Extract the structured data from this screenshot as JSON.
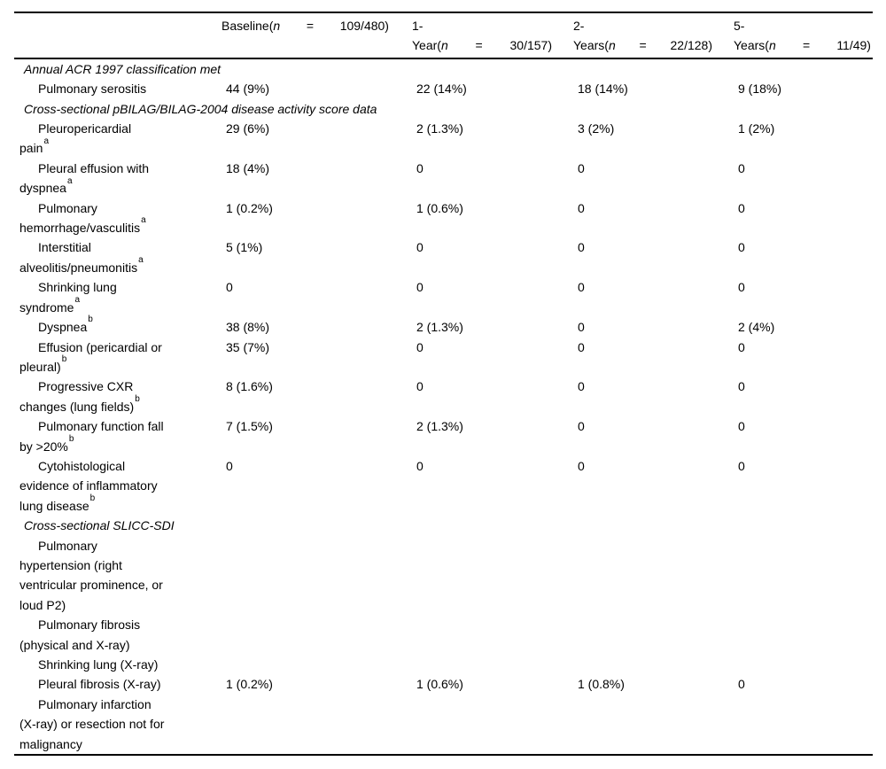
{
  "colors": {
    "background": "#ffffff",
    "text": "#000000",
    "rule": "#000000"
  },
  "table": {
    "header": {
      "row_label_column": "",
      "columns": [
        {
          "top_line": "",
          "name_pre": "Baseline(",
          "n_symbol": "n",
          "equals": "=",
          "count": "109/480)",
          "wrapped": false
        },
        {
          "top_line": "1-",
          "name_pre": "Year(",
          "n_symbol": "n",
          "equals": "=",
          "count": "30/157)",
          "wrapped": true
        },
        {
          "top_line": "2-",
          "name_pre": "Years(",
          "n_symbol": "n",
          "equals": "=",
          "count": "22/128)",
          "wrapped": true
        },
        {
          "top_line": "5-",
          "name_pre": "Years(",
          "n_symbol": "n",
          "equals": "=",
          "count": "11/49)",
          "wrapped": true
        }
      ]
    },
    "rows": [
      {
        "type": "section",
        "lines": [
          "Annual ACR 1997 classification met"
        ],
        "sup": "",
        "values": [
          "",
          "",
          "",
          ""
        ]
      },
      {
        "type": "item",
        "lines": [
          "Pulmonary serositis"
        ],
        "sup": "",
        "values": [
          "44 (9%)",
          "22 (14%)",
          "18 (14%)",
          "9 (18%)"
        ]
      },
      {
        "type": "section",
        "lines": [
          "Cross-sectional pBILAG/BILAG-2004 disease activity score data"
        ],
        "sup": "",
        "values": [
          "",
          "",
          "",
          ""
        ]
      },
      {
        "type": "item",
        "lines": [
          "Pleuropericardial",
          "pain"
        ],
        "sup": "a",
        "values": [
          "29 (6%)",
          "2 (1.3%)",
          "3 (2%)",
          "1 (2%)"
        ]
      },
      {
        "type": "item",
        "lines": [
          "Pleural effusion with",
          "dyspnea"
        ],
        "sup": "a",
        "values": [
          "18 (4%)",
          "0",
          "0",
          "0"
        ]
      },
      {
        "type": "item",
        "lines": [
          "Pulmonary",
          "hemorrhage/vasculitis"
        ],
        "sup": "a",
        "values": [
          "1 (0.2%)",
          "1 (0.6%)",
          "0",
          "0"
        ]
      },
      {
        "type": "item",
        "lines": [
          "Interstitial",
          "alveolitis/pneumonitis"
        ],
        "sup": "a",
        "values": [
          "5 (1%)",
          "0",
          "0",
          "0"
        ]
      },
      {
        "type": "item",
        "lines": [
          "Shrinking lung",
          "syndrome"
        ],
        "sup": "a",
        "values": [
          "0",
          "0",
          "0",
          "0"
        ]
      },
      {
        "type": "item",
        "lines": [
          "Dyspnea"
        ],
        "sup": "b",
        "values": [
          "38 (8%)",
          "2 (1.3%)",
          "0",
          "2 (4%)"
        ]
      },
      {
        "type": "item",
        "lines": [
          "Effusion (pericardial or",
          "pleural)"
        ],
        "sup": "b",
        "values": [
          "35 (7%)",
          "0",
          "0",
          "0"
        ]
      },
      {
        "type": "item",
        "lines": [
          "Progressive CXR",
          "changes (lung fields)"
        ],
        "sup": "b",
        "values": [
          "8 (1.6%)",
          "0",
          "0",
          "0"
        ]
      },
      {
        "type": "item",
        "lines": [
          "Pulmonary function fall",
          "by >20%"
        ],
        "sup": "b",
        "values": [
          "7 (1.5%)",
          "2 (1.3%)",
          "0",
          "0"
        ]
      },
      {
        "type": "item",
        "lines": [
          "Cytohistological",
          "evidence of inflammatory",
          "lung disease"
        ],
        "sup": "b",
        "values": [
          "0",
          "0",
          "0",
          "0"
        ]
      },
      {
        "type": "section",
        "lines": [
          "Cross-sectional SLICC-SDI"
        ],
        "sup": "",
        "values": [
          "",
          "",
          "",
          ""
        ]
      },
      {
        "type": "item",
        "lines": [
          "Pulmonary",
          "hypertension (right",
          "ventricular prominence, or",
          "loud P2)"
        ],
        "sup": "",
        "values": [
          "",
          "",
          "",
          ""
        ]
      },
      {
        "type": "item",
        "lines": [
          "Pulmonary fibrosis",
          "(physical and X-ray)"
        ],
        "sup": "",
        "values": [
          "",
          "",
          "",
          ""
        ]
      },
      {
        "type": "item",
        "lines": [
          "Shrinking lung (X-ray)"
        ],
        "sup": "",
        "values": [
          "",
          "",
          "",
          ""
        ]
      },
      {
        "type": "item",
        "lines": [
          "Pleural fibrosis (X-ray)"
        ],
        "sup": "",
        "values": [
          "1 (0.2%)",
          "1 (0.6%)",
          "1 (0.8%)",
          "0"
        ]
      },
      {
        "type": "item",
        "lines": [
          "Pulmonary infarction",
          "(X-ray) or resection not for",
          "malignancy"
        ],
        "sup": "",
        "values": [
          "",
          "",
          "",
          ""
        ]
      }
    ]
  }
}
